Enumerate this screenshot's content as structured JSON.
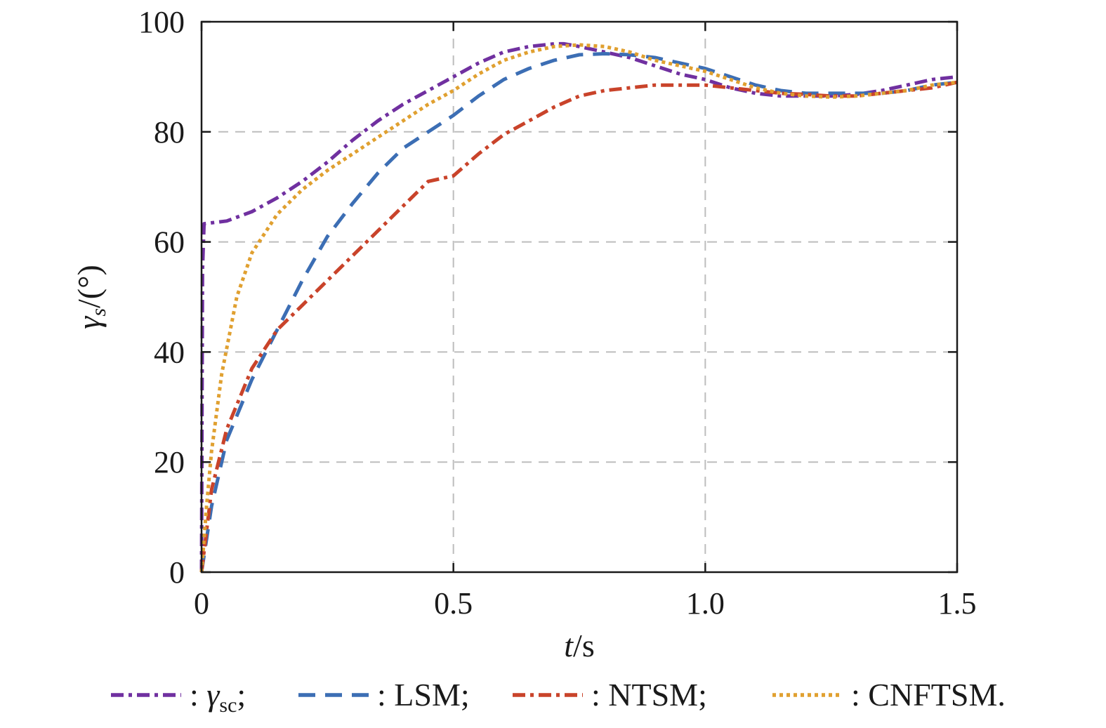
{
  "chart_data": {
    "type": "line",
    "xlabel": {
      "var": "t",
      "unit": "/s"
    },
    "ylabel": {
      "var": "γ",
      "sub": "s",
      "unit": "/(°)"
    },
    "xlim": [
      0,
      1.5
    ],
    "ylim": [
      0,
      100
    ],
    "xticks": [
      0,
      0.5,
      1.0,
      1.5
    ],
    "xtick_labels": [
      "0",
      "0.5",
      "1.0",
      "1.5"
    ],
    "yticks": [
      0,
      20,
      40,
      60,
      80,
      100
    ],
    "ytick_labels": [
      "0",
      "20",
      "40",
      "60",
      "80",
      "100"
    ],
    "grid": true,
    "legend_position": "bottom",
    "series": [
      {
        "key": "gsc",
        "label_prefix": ": ",
        "name": "γ",
        "name_sub": "sc",
        "label_suffix": ";",
        "color": "#7030A0",
        "dash": "dashdot",
        "x": [
          0,
          0.001,
          0.002,
          0.005,
          0.05,
          0.1,
          0.15,
          0.2,
          0.25,
          0.3,
          0.35,
          0.4,
          0.45,
          0.5,
          0.55,
          0.6,
          0.65,
          0.7,
          0.72,
          0.75,
          0.8,
          0.85,
          0.9,
          0.95,
          1.0,
          1.05,
          1.1,
          1.15,
          1.2,
          1.25,
          1.3,
          1.35,
          1.4,
          1.45,
          1.5
        ],
        "y": [
          0,
          30,
          55,
          63.3,
          63.8,
          65.5,
          68,
          71,
          74.5,
          78.5,
          82,
          85,
          87.5,
          90,
          92.5,
          94.5,
          95.5,
          96,
          96,
          95.5,
          94.5,
          93.5,
          92,
          90.5,
          89.5,
          88,
          87,
          86.5,
          86.5,
          86.5,
          86.8,
          87.5,
          88.5,
          89.5,
          90
        ]
      },
      {
        "key": "lsm",
        "label_prefix": ": ",
        "name": "LSM",
        "label_suffix": ";",
        "color": "#3C6EB4",
        "dash": "dashed",
        "x": [
          0,
          0.02,
          0.05,
          0.1,
          0.15,
          0.2,
          0.25,
          0.3,
          0.35,
          0.4,
          0.45,
          0.5,
          0.55,
          0.6,
          0.65,
          0.7,
          0.75,
          0.8,
          0.85,
          0.9,
          0.95,
          1.0,
          1.05,
          1.1,
          1.15,
          1.2,
          1.25,
          1.3,
          1.35,
          1.4,
          1.45,
          1.5
        ],
        "y": [
          0,
          12,
          24,
          35,
          44,
          53,
          61,
          67,
          72.5,
          77,
          80,
          83,
          86.5,
          89.5,
          91.5,
          93,
          94,
          94.2,
          94,
          93.5,
          92.5,
          91.5,
          90,
          88.5,
          87.5,
          87,
          87,
          87,
          87,
          87.5,
          88.5,
          89
        ]
      },
      {
        "key": "ntsm",
        "label_prefix": ": ",
        "name": "NTSM",
        "label_suffix": ";",
        "color": "#C9432A",
        "dash": "dashdot",
        "x": [
          0,
          0.02,
          0.05,
          0.1,
          0.15,
          0.2,
          0.25,
          0.3,
          0.35,
          0.4,
          0.45,
          0.5,
          0.55,
          0.6,
          0.65,
          0.7,
          0.75,
          0.8,
          0.85,
          0.9,
          0.95,
          1.0,
          1.05,
          1.1,
          1.15,
          1.2,
          1.25,
          1.3,
          1.35,
          1.4,
          1.45,
          1.5
        ],
        "y": [
          0,
          15,
          26,
          37,
          44,
          48.5,
          53,
          57.5,
          62,
          66.5,
          71,
          72,
          76,
          79.5,
          82,
          84.5,
          86.5,
          87.5,
          88,
          88.5,
          88.5,
          88.5,
          88,
          87.5,
          87,
          86.8,
          86.5,
          86.5,
          87,
          87.5,
          88,
          89
        ]
      },
      {
        "key": "cnftsm",
        "label_prefix": ": ",
        "name": "CNFTSM",
        "label_suffix": ".",
        "color": "#E0A030",
        "dash": "dotted",
        "x": [
          0,
          0.01,
          0.02,
          0.04,
          0.07,
          0.1,
          0.15,
          0.2,
          0.25,
          0.3,
          0.35,
          0.4,
          0.45,
          0.5,
          0.55,
          0.6,
          0.65,
          0.7,
          0.75,
          0.8,
          0.85,
          0.9,
          0.95,
          1.0,
          1.05,
          1.1,
          1.15,
          1.2,
          1.25,
          1.3,
          1.35,
          1.4,
          1.45,
          1.5
        ],
        "y": [
          0,
          12,
          22,
          36,
          50,
          58,
          65,
          69.5,
          73,
          76,
          79,
          82,
          85,
          87.5,
          90.5,
          93,
          94.5,
          95.5,
          95.8,
          95.5,
          94.5,
          93,
          92,
          91,
          89.5,
          88,
          87,
          86.5,
          86.3,
          86.5,
          87,
          87.5,
          88.5,
          89
        ]
      }
    ]
  }
}
